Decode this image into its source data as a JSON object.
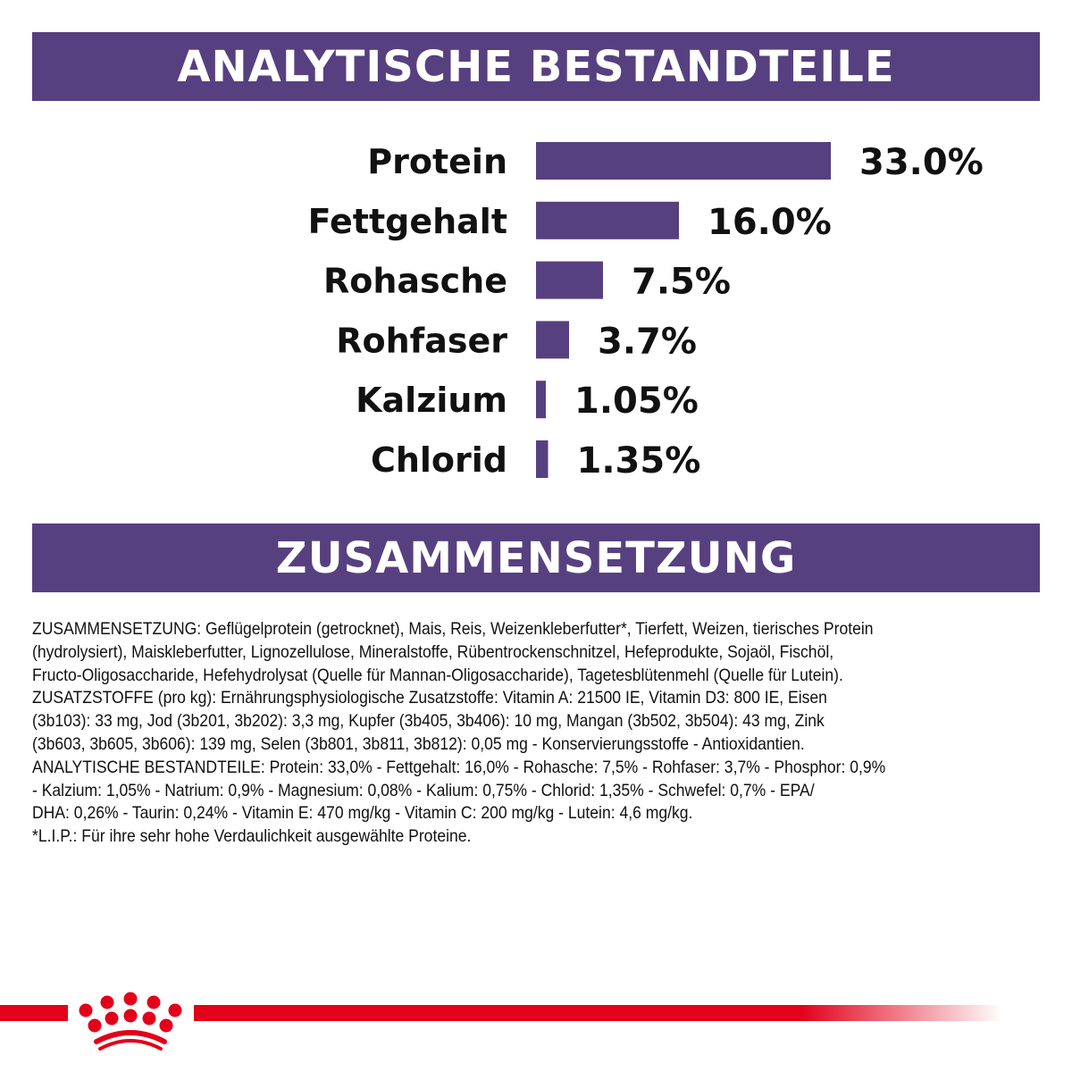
{
  "headers": {
    "analytics": "ANALYTISCHE BESTANDTEILE",
    "composition": "ZUSAMMENSETZUNG"
  },
  "chart_data": {
    "type": "bar",
    "orientation": "horizontal",
    "categories": [
      "Protein",
      "Fettgehalt",
      "Rohasche",
      "Rohfaser",
      "Kalzium",
      "Chlorid"
    ],
    "values": [
      33.0,
      16.0,
      7.5,
      3.7,
      1.05,
      1.35
    ],
    "labels": [
      "33.0%",
      "16.0%",
      "7.5%",
      "3.7%",
      "1.05%",
      "1.35%"
    ],
    "unit": "%",
    "bar_color": "#574080",
    "grid": false
  },
  "composition_lines": [
    "ZUSAMMENSETZUNG: Geflügelprotein (getrocknet), Mais, Reis, Weizenkleberfutter*, Tierfett, Weizen, tierisches Protein",
    "(hydrolysiert), Maiskleberfutter, Lignozellulose, Mineralstoffe, Rübentrockenschnitzel, Hefeprodukte, Sojaöl, Fischöl,",
    "Fructo-Oligosaccharide, Hefehydrolysat (Quelle für Mannan-Oligosaccharide), Tagetesblütenmehl (Quelle für Lutein).",
    "ZUSATZSTOFFE (pro kg): Ernährungsphysiologische Zusatzstoffe: Vitamin A: 21500 IE, Vitamin D3: 800 IE, Eisen",
    "(3b103): 33 mg, Jod (3b201, 3b202): 3,3 mg, Kupfer (3b405, 3b406): 10 mg, Mangan (3b502, 3b504): 43 mg, Zink",
    "(3b603, 3b605, 3b606): 139 mg, Selen (3b801, 3b811, 3b812): 0,05 mg - Konservierungsstoffe - Antioxidantien.",
    "ANALYTISCHE BESTANDTEILE: Protein: 33,0% - Fettgehalt: 16,0% - Rohasche: 7,5% - Rohfaser: 3,7% - Phosphor: 0,9%",
    "- Kalzium: 1,05% - Natrium: 0,9% - Magnesium: 0,08% - Kalium: 0,75% - Chlorid: 1,35% - Schwefel: 0,7% - EPA/",
    "DHA: 0,26% - Taurin: 0,24% - Vitamin E: 470 mg/kg - Vitamin C: 200 mg/kg - Lutein: 4,6 mg/kg.",
    "*L.I.P.: Für ihre sehr hohe Verdaulichkeit ausgewählte Proteine."
  ],
  "brand": {
    "logo": "crown-logo",
    "color": "#e2001a"
  }
}
